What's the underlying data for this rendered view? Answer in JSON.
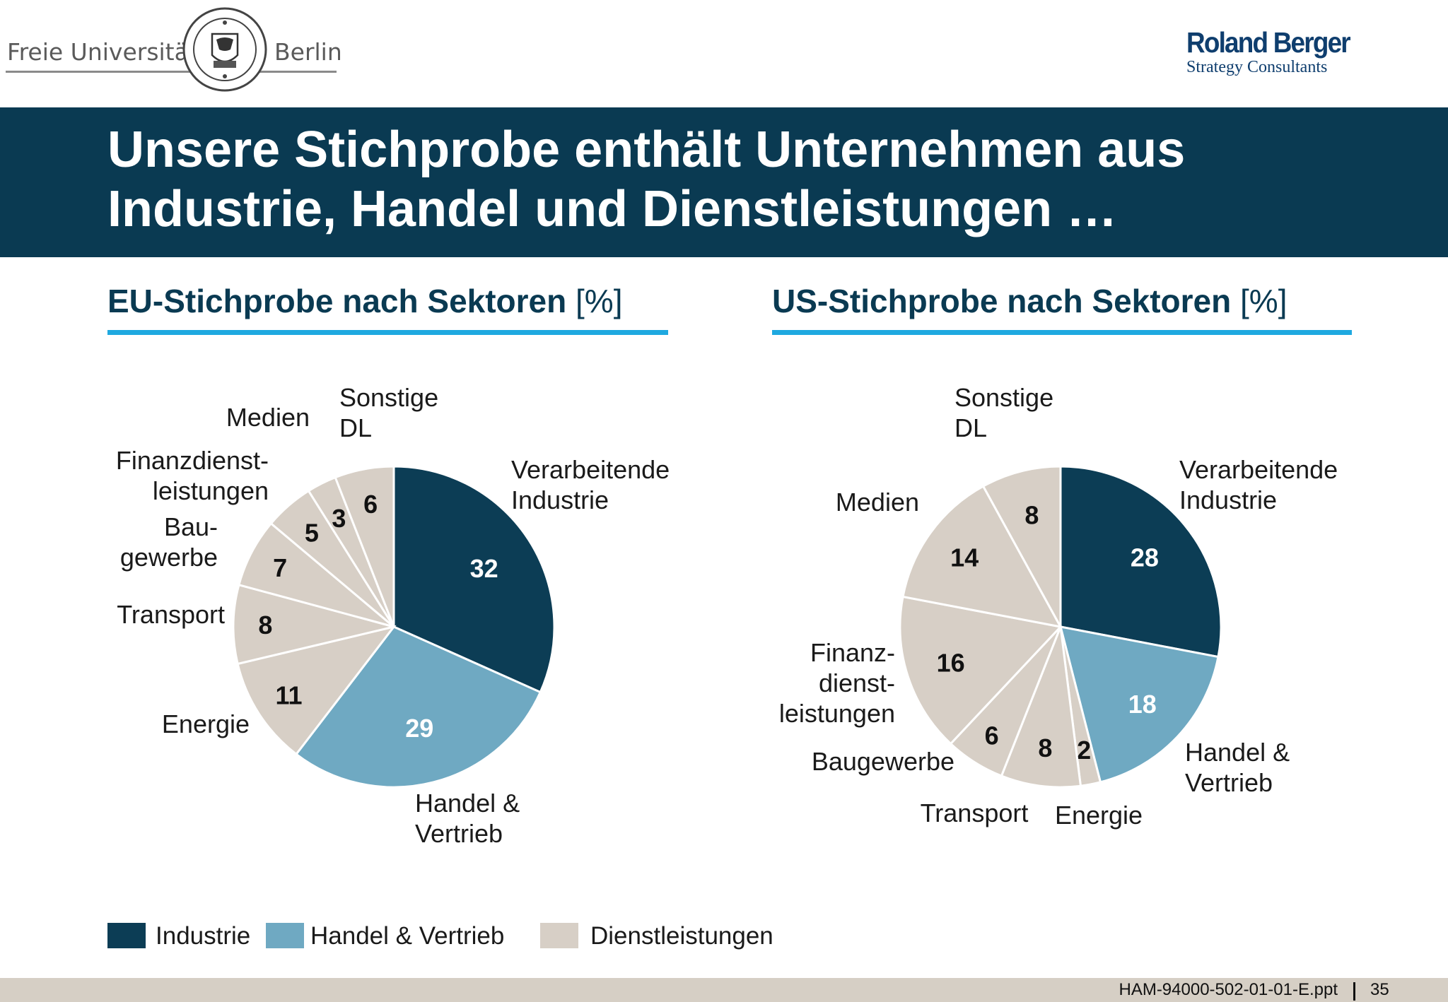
{
  "logos": {
    "left_text_1": "Freie Universität",
    "left_text_2": "Berlin",
    "right_name": "Roland Berger",
    "right_sub": "Strategy Consultants"
  },
  "title": {
    "line1": "Unsere Stichprobe enthält Unternehmen aus",
    "line2": "Industrie, Handel und Dienstleistungen …"
  },
  "colors": {
    "banner": "#0a3a52",
    "industrie": "#0c3d55",
    "handel": "#6fa9c2",
    "dienstleistungen": "#d7cfc6",
    "accent_line": "#1fa9e0"
  },
  "chart_data": [
    {
      "type": "pie",
      "title_bold": "EU-Stichprobe nach Sektoren",
      "title_unit": "[%]",
      "slices": [
        {
          "label": "Verarbeitende Industrie",
          "value": 32,
          "group": "industrie"
        },
        {
          "label": "Handel & Vertrieb",
          "value": 29,
          "group": "handel"
        },
        {
          "label": "Energie",
          "value": 11,
          "group": "dienstleistungen"
        },
        {
          "label": "Transport",
          "value": 8,
          "group": "dienstleistungen"
        },
        {
          "label": "Baugewerbe",
          "value": 7,
          "group": "dienstleistungen"
        },
        {
          "label": "Finanzdienstleistungen",
          "value": 5,
          "group": "dienstleistungen"
        },
        {
          "label": "Medien",
          "value": 3,
          "group": "dienstleistungen"
        },
        {
          "label": "Sonstige DL",
          "value": 6,
          "group": "dienstleistungen"
        }
      ]
    },
    {
      "type": "pie",
      "title_bold": "US-Stichprobe nach Sektoren",
      "title_unit": "[%]",
      "slices": [
        {
          "label": "Verarbeitende Industrie",
          "value": 28,
          "group": "industrie"
        },
        {
          "label": "Handel & Vertrieb",
          "value": 18,
          "group": "handel"
        },
        {
          "label": "Energie",
          "value": 2,
          "group": "dienstleistungen"
        },
        {
          "label": "Transport",
          "value": 8,
          "group": "dienstleistungen"
        },
        {
          "label": "Baugewerbe",
          "value": 6,
          "group": "dienstleistungen"
        },
        {
          "label": "Finanzdienstleistungen",
          "value": 16,
          "group": "dienstleistungen"
        },
        {
          "label": "Medien",
          "value": 14,
          "group": "dienstleistungen"
        },
        {
          "label": "Sonstige DL",
          "value": 8,
          "group": "dienstleistungen"
        }
      ]
    }
  ],
  "category_labels": {
    "eu": [
      [
        "Verarbeitende",
        "Industrie"
      ],
      [
        "Handel &",
        "Vertrieb"
      ],
      [
        "Energie"
      ],
      [
        "Transport"
      ],
      [
        "Bau-",
        "gewerbe"
      ],
      [
        "Finanzdienst-",
        "leistungen"
      ],
      [
        "Medien"
      ],
      [
        "Sonstige",
        "DL"
      ]
    ],
    "us": [
      [
        "Verarbeitende",
        "Industrie"
      ],
      [
        "Handel &",
        "Vertrieb"
      ],
      [
        "Energie"
      ],
      [
        "Transport"
      ],
      [
        "Baugewerbe"
      ],
      [
        "Finanz-",
        "dienst-",
        "leistungen"
      ],
      [
        "Medien"
      ],
      [
        "Sonstige",
        "DL"
      ]
    ]
  },
  "legend": [
    {
      "label": "Industrie",
      "group": "industrie"
    },
    {
      "label": "Handel & Vertrieb",
      "group": "handel"
    },
    {
      "label": "Dienstleistungen",
      "group": "dienstleistungen"
    }
  ],
  "footer": {
    "file": "HAM-94000-502-01-01-E.ppt",
    "page": "35"
  }
}
